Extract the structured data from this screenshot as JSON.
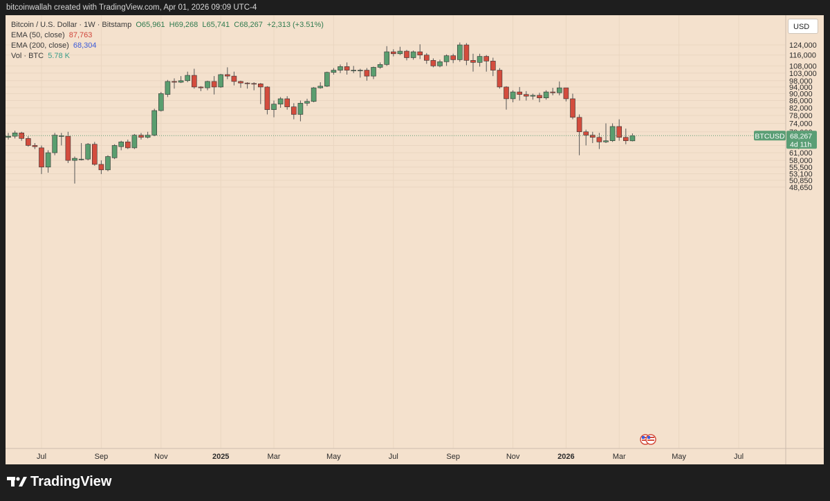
{
  "header": {
    "credit": "bitcoinwallah created with TradingView.com, Apr 01, 2026 09:09 UTC-4"
  },
  "legend": {
    "symbol": "Bitcoin / U.S. Dollar · 1W · Bitstamp",
    "o": "O65,961",
    "h": "H69,268",
    "l": "L65,741",
    "c": "C68,267",
    "change": "+2,313 (+3.51%)",
    "ema50_label": "EMA (50, close)",
    "ema50_value": "87,763",
    "ema200_label": "EMA (200, close)",
    "ema200_value": "68,304",
    "vol_label": "Vol · BTC",
    "vol_value": "5.78 K"
  },
  "currency_button": "USD",
  "price_tag": {
    "ticker": "BTCUSD",
    "price": "68,267",
    "countdown": "4d 11h"
  },
  "brand": "TradingView",
  "colors": {
    "up": "#5a9e6f",
    "down": "#d34c3d",
    "background": "#f4e1cd",
    "wick": "#555555",
    "tag": "#5a9e75"
  },
  "chart_data": {
    "type": "candlestick",
    "title": "Bitcoin / U.S. Dollar · 1W · Bitstamp",
    "scale": "log",
    "ylim": [
      46500,
      127000
    ],
    "y_ticks": [
      124000,
      116000,
      108000,
      103000,
      98000,
      94000,
      90000,
      86000,
      82000,
      78000,
      74000,
      70000,
      64000,
      61000,
      58000,
      55500,
      53100,
      50850,
      48650
    ],
    "x_ticks": [
      {
        "label": "Jul",
        "week": 5
      },
      {
        "label": "Sep",
        "week": 14
      },
      {
        "label": "Nov",
        "week": 23
      },
      {
        "label": "2025",
        "week": 32,
        "bold": true
      },
      {
        "label": "Mar",
        "week": 40
      },
      {
        "label": "May",
        "week": 49
      },
      {
        "label": "Jul",
        "week": 58
      },
      {
        "label": "Sep",
        "week": 67
      },
      {
        "label": "Nov",
        "week": 76
      },
      {
        "label": "2026",
        "week": 84,
        "bold": true
      },
      {
        "label": "Mar",
        "week": 92
      },
      {
        "label": "May",
        "week": 101
      },
      {
        "label": "Jul",
        "week": 110
      }
    ],
    "last_price": 68267,
    "candles": [
      [
        67500,
        68000,
        69500,
        66500
      ],
      [
        68000,
        69500,
        70500,
        67000
      ],
      [
        69500,
        67000,
        70000,
        66000
      ],
      [
        67000,
        64000,
        68000,
        63500
      ],
      [
        64000,
        63500,
        65000,
        62500
      ],
      [
        63000,
        55500,
        64000,
        53000
      ],
      [
        55500,
        61000,
        62000,
        53500
      ],
      [
        61000,
        68500,
        69500,
        60000
      ],
      [
        68000,
        68200,
        69500,
        64000
      ],
      [
        68000,
        58000,
        70000,
        57000
      ],
      [
        58000,
        58800,
        59500,
        49800
      ],
      [
        58500,
        58500,
        65000,
        58000
      ],
      [
        58500,
        64500,
        65000,
        58000
      ],
      [
        64500,
        56500,
        65500,
        56000
      ],
      [
        56500,
        54500,
        58000,
        53000
      ],
      [
        54500,
        59500,
        60000,
        54000
      ],
      [
        59000,
        64000,
        64500,
        58500
      ],
      [
        63500,
        65500,
        66000,
        62000
      ],
      [
        65500,
        63000,
        66500,
        62500
      ],
      [
        63000,
        68500,
        69000,
        62500
      ],
      [
        68500,
        67500,
        69500,
        66500
      ],
      [
        67500,
        68500,
        70000,
        67000
      ],
      [
        68500,
        80500,
        81500,
        68000
      ],
      [
        80500,
        90000,
        91000,
        80000
      ],
      [
        89500,
        97500,
        98500,
        88000
      ],
      [
        97500,
        97000,
        99500,
        93000
      ],
      [
        97000,
        98000,
        101000,
        96500
      ],
      [
        98000,
        101500,
        104000,
        97000
      ],
      [
        101500,
        94000,
        106000,
        93000
      ],
      [
        94000,
        93500,
        94500,
        91500
      ],
      [
        93500,
        97500,
        98000,
        92000
      ],
      [
        97500,
        94000,
        101000,
        89500
      ],
      [
        94000,
        102000,
        102500,
        93500
      ],
      [
        102000,
        101000,
        107000,
        99000
      ],
      [
        101000,
        97500,
        104000,
        95000
      ],
      [
        97500,
        96500,
        98000,
        93500
      ],
      [
        96500,
        96200,
        97000,
        93000
      ],
      [
        96200,
        96000,
        97000,
        92000
      ],
      [
        96000,
        94000,
        96500,
        84000
      ],
      [
        94000,
        81000,
        94500,
        78500
      ],
      [
        81000,
        84000,
        86000,
        77000
      ],
      [
        84000,
        87000,
        88000,
        82000
      ],
      [
        87000,
        82500,
        88500,
        81000
      ],
      [
        82500,
        78500,
        84500,
        76000
      ],
      [
        78500,
        84500,
        86000,
        75000
      ],
      [
        84500,
        85500,
        87000,
        83000
      ],
      [
        85500,
        93500,
        94000,
        85000
      ],
      [
        93500,
        94500,
        97000,
        93000
      ],
      [
        94500,
        103500,
        104000,
        94000
      ],
      [
        103500,
        105000,
        106500,
        102000
      ],
      [
        105000,
        107500,
        109000,
        103000
      ],
      [
        107500,
        105000,
        110500,
        102000
      ],
      [
        105000,
        105000,
        108000,
        103000
      ],
      [
        105000,
        105000,
        106000,
        100000
      ],
      [
        105000,
        101000,
        106500,
        98000
      ],
      [
        101000,
        107000,
        107500,
        99000
      ],
      [
        107000,
        109000,
        110500,
        106000
      ],
      [
        109000,
        118500,
        123000,
        108000
      ],
      [
        118500,
        117000,
        120500,
        115000
      ],
      [
        117000,
        119000,
        122500,
        116000
      ],
      [
        119000,
        114000,
        120000,
        112000
      ],
      [
        114000,
        118500,
        119500,
        112500
      ],
      [
        118500,
        116000,
        124500,
        113000
      ],
      [
        116000,
        112000,
        117500,
        109500
      ],
      [
        112000,
        108000,
        113500,
        107000
      ],
      [
        108000,
        111000,
        112500,
        107000
      ],
      [
        111000,
        115500,
        116500,
        108000
      ],
      [
        115500,
        112500,
        117000,
        110000
      ],
      [
        112500,
        124000,
        126000,
        111000
      ],
      [
        124000,
        112000,
        125500,
        108500
      ],
      [
        112000,
        110500,
        117000,
        104000
      ],
      [
        110500,
        115000,
        117000,
        107500
      ],
      [
        115000,
        111500,
        116000,
        104000
      ],
      [
        111500,
        105000,
        114000,
        101000
      ],
      [
        105000,
        94000,
        106500,
        93000
      ],
      [
        94000,
        87000,
        94500,
        81000
      ],
      [
        87000,
        91000,
        92000,
        85000
      ],
      [
        91000,
        89500,
        94000,
        86000
      ],
      [
        89500,
        88500,
        91500,
        86000
      ],
      [
        88500,
        89000,
        90000,
        86500
      ],
      [
        89000,
        87500,
        90500,
        85000
      ],
      [
        87500,
        91000,
        92000,
        86500
      ],
      [
        91000,
        90500,
        93500,
        89000
      ],
      [
        90500,
        93500,
        97500,
        89000
      ],
      [
        93500,
        87000,
        93500,
        85500
      ],
      [
        87000,
        77000,
        90000,
        76000
      ],
      [
        77000,
        70000,
        78500,
        60000
      ],
      [
        70000,
        68500,
        71000,
        64000
      ],
      [
        68500,
        67500,
        70000,
        65000
      ],
      [
        67500,
        65500,
        69500,
        62500
      ],
      [
        65500,
        66000,
        74000,
        65000
      ],
      [
        66000,
        72500,
        74000,
        65500
      ],
      [
        72500,
        67500,
        76000,
        66000
      ],
      [
        67500,
        66000,
        71500,
        64500
      ],
      [
        65961,
        68267,
        69268,
        65741
      ]
    ]
  }
}
